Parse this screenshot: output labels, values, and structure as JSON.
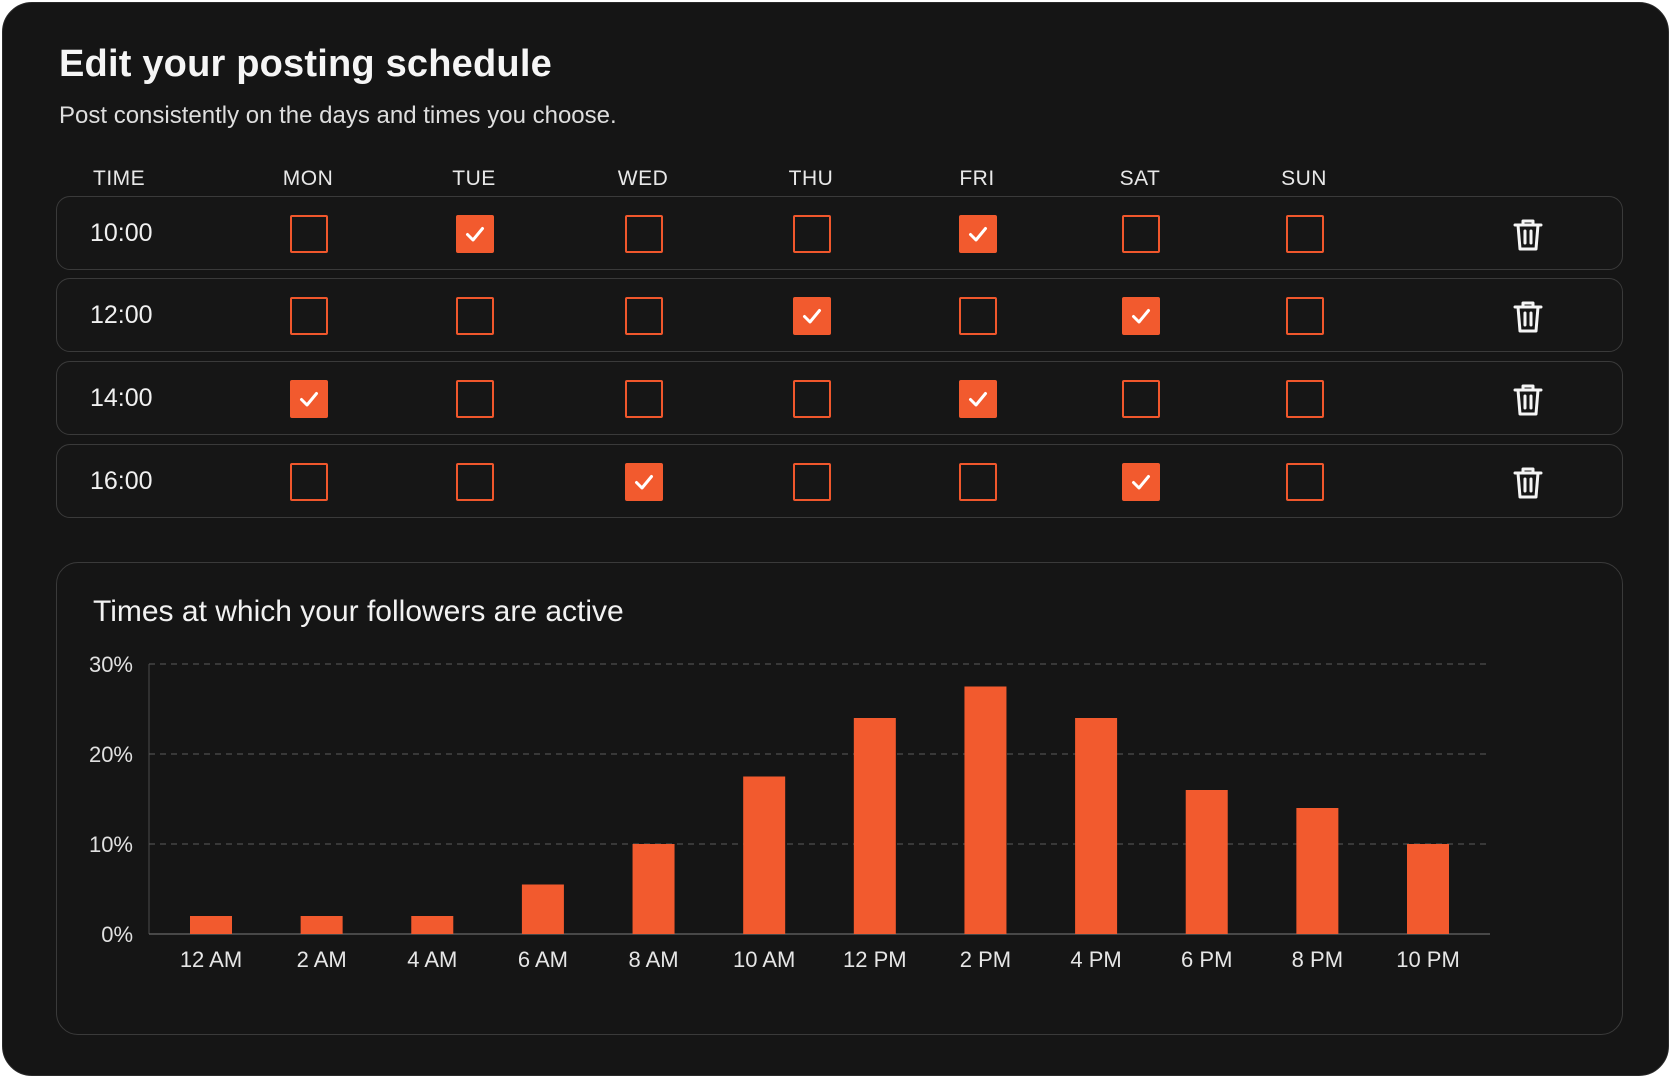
{
  "header": {
    "title": "Edit your posting schedule",
    "subtitle": "Post consistently on the days and times you choose."
  },
  "schedule": {
    "columns": [
      "TIME",
      "MON",
      "TUE",
      "WED",
      "THU",
      "FRI",
      "SAT",
      "SUN"
    ],
    "rows": [
      {
        "time": "10:00",
        "days": [
          false,
          true,
          false,
          false,
          true,
          false,
          false
        ]
      },
      {
        "time": "12:00",
        "days": [
          false,
          false,
          false,
          true,
          false,
          true,
          false
        ]
      },
      {
        "time": "14:00",
        "days": [
          true,
          false,
          false,
          false,
          true,
          false,
          false
        ]
      },
      {
        "time": "16:00",
        "days": [
          false,
          false,
          true,
          false,
          false,
          true,
          false
        ]
      }
    ],
    "delete_icon": "trash-icon"
  },
  "colors": {
    "accent": "#f25a2e",
    "background": "#151515",
    "border": "#3a3a3a"
  },
  "chart_data": {
    "type": "bar",
    "title": "Times at which your followers are active",
    "categories": [
      "12 AM",
      "2 AM",
      "4 AM",
      "6 AM",
      "8 AM",
      "10 AM",
      "12 PM",
      "2 PM",
      "4 PM",
      "6 PM",
      "8 PM",
      "10 PM"
    ],
    "values": [
      2,
      2,
      2,
      5.5,
      10,
      17.5,
      24,
      27.5,
      24,
      16,
      14,
      10
    ],
    "yticks": [
      "0%",
      "10%",
      "20%",
      "30%"
    ],
    "ylim": [
      0,
      30
    ],
    "grid": true,
    "xlabel": "",
    "ylabel": ""
  }
}
